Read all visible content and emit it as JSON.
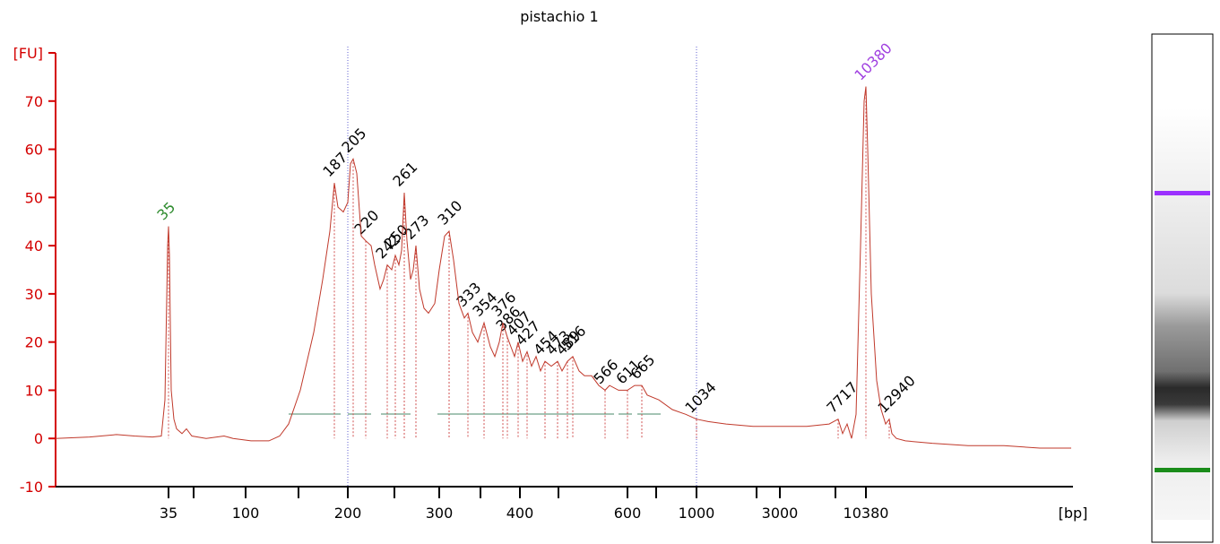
{
  "chart_data": {
    "type": "line",
    "title": "pistachio 1",
    "ylabel": "[FU]",
    "xlabel": "[bp]",
    "xlim": [
      0,
      113.5
    ],
    "ylim": [
      -10,
      80
    ],
    "yticks": [
      -10,
      0,
      10,
      20,
      30,
      40,
      50,
      60,
      70
    ],
    "xticks": [
      {
        "value": 12.6,
        "label": "35"
      },
      {
        "value": 21.2,
        "label": "100"
      },
      {
        "value": 32.6,
        "label": "200"
      },
      {
        "value": 42.8,
        "label": "300"
      },
      {
        "value": 51.8,
        "label": "400"
      },
      {
        "value": 63.8,
        "label": "600"
      },
      {
        "value": 71.5,
        "label": "1000"
      },
      {
        "value": 80.8,
        "label": "3000"
      },
      {
        "value": 90.4,
        "label": "10380"
      }
    ],
    "xminorticks": [
      15.4,
      27.1,
      37.8,
      47.4,
      56.1,
      67,
      78.2,
      87
    ],
    "marker_lines": [
      32.6,
      71.5
    ],
    "series": [
      {
        "color": "#c0392b",
        "x": [
          0,
          3.8,
          6.8,
          8.8,
          10.8,
          11.8,
          12.2,
          12.5,
          12.6,
          12.7,
          12.9,
          13.2,
          13.5,
          14.1,
          14.6,
          15.2,
          16.8,
          18.8,
          19.8,
          21.8,
          23.8,
          25,
          26,
          27.3,
          28.8,
          29.8,
          30.6,
          31.1,
          31.5,
          32.1,
          32.6,
          32.9,
          33.2,
          33.6,
          34.1,
          34.6,
          35.2,
          35.6,
          36.2,
          36.6,
          37,
          37.5,
          37.9,
          38.3,
          38.6,
          38.9,
          39.2,
          39.6,
          39.9,
          40.2,
          40.6,
          41.1,
          41.6,
          42.3,
          42.8,
          43.4,
          43.9,
          44.4,
          45,
          45.6,
          46,
          46.5,
          47.1,
          47.8,
          48.5,
          49,
          49.5,
          49.9,
          50.4,
          50.8,
          51.2,
          51.6,
          52.1,
          52.6,
          53.1,
          53.6,
          54.1,
          54.6,
          55.3,
          56,
          56.5,
          57.1,
          57.7,
          58.4,
          59,
          59.8,
          60.6,
          61.3,
          61.8,
          62.8,
          63.8,
          64.6,
          65.4,
          66,
          67.3,
          68.8,
          70.3,
          71.5,
          72.8,
          74.8,
          77.8,
          80.8,
          83.8,
          86.3,
          87.3,
          87.8,
          88.3,
          88.8,
          89.3,
          89.8,
          90.2,
          90.4,
          90.6,
          91,
          91.6,
          92.1,
          92.6,
          93,
          93.3,
          93.8,
          94.8,
          97.8,
          101.8,
          105.8,
          109.8,
          113.3
        ],
        "values": [
          0,
          0.3,
          0.8,
          0.5,
          0.3,
          0.5,
          8,
          40,
          44,
          38,
          10,
          4,
          2,
          1,
          2,
          0.5,
          0,
          0.5,
          0,
          -0.5,
          -0.5,
          0.5,
          3,
          10,
          22,
          33,
          43,
          53,
          48,
          47,
          49,
          57,
          58,
          55,
          42,
          41,
          40,
          36,
          31,
          33,
          36,
          35,
          38,
          36,
          39,
          51,
          41,
          33,
          35,
          40,
          31,
          27,
          26,
          28,
          35,
          42,
          43,
          37,
          28,
          25,
          26,
          22,
          20,
          24,
          19,
          17,
          20,
          24,
          21,
          19,
          17,
          20,
          16,
          18,
          15,
          17,
          14,
          16,
          15,
          16,
          14,
          16,
          17,
          14,
          13,
          13,
          11,
          10,
          11,
          10,
          10,
          11,
          11,
          9,
          8,
          6,
          5,
          4,
          3.5,
          3,
          2.5,
          2.5,
          2.5,
          3,
          4,
          1,
          3,
          0,
          5,
          40,
          70,
          73,
          60,
          30,
          12,
          6,
          3,
          4,
          1,
          0,
          -0.5,
          -1,
          -1.5,
          -1.5,
          -2,
          -2
        ]
      }
    ],
    "peaks": [
      {
        "label": "35",
        "x": 12.6,
        "y": 44,
        "color": "#2e8b2e"
      },
      {
        "label": "187",
        "x": 31.1,
        "y": 53,
        "color": "#000000"
      },
      {
        "label": "205",
        "x": 33.2,
        "y": 58,
        "color": "#000000"
      },
      {
        "label": "220",
        "x": 34.6,
        "y": 41,
        "color": "#000000"
      },
      {
        "label": "242",
        "x": 37,
        "y": 36,
        "color": "#000000"
      },
      {
        "label": "250",
        "x": 37.9,
        "y": 38,
        "color": "#000000"
      },
      {
        "label": "261",
        "x": 38.9,
        "y": 51,
        "color": "#000000"
      },
      {
        "label": "273",
        "x": 40.2,
        "y": 40,
        "color": "#000000"
      },
      {
        "label": "310",
        "x": 43.9,
        "y": 43,
        "color": "#000000"
      },
      {
        "label": "333",
        "x": 46,
        "y": 26,
        "color": "#000000"
      },
      {
        "label": "354",
        "x": 47.8,
        "y": 24,
        "color": "#000000"
      },
      {
        "label": "376",
        "x": 49.9,
        "y": 24,
        "color": "#000000"
      },
      {
        "label": "386",
        "x": 50.4,
        "y": 21,
        "color": "#000000"
      },
      {
        "label": "407",
        "x": 51.6,
        "y": 20,
        "color": "#000000"
      },
      {
        "label": "427",
        "x": 52.6,
        "y": 18,
        "color": "#000000"
      },
      {
        "label": "454",
        "x": 54.6,
        "y": 16,
        "color": "#000000"
      },
      {
        "label": "473",
        "x": 56,
        "y": 16,
        "color": "#000000"
      },
      {
        "label": "489",
        "x": 57.1,
        "y": 16,
        "color": "#000000"
      },
      {
        "label": "516",
        "x": 57.7,
        "y": 17,
        "color": "#000000"
      },
      {
        "label": "566",
        "x": 61.3,
        "y": 10,
        "color": "#000000"
      },
      {
        "label": "611",
        "x": 63.8,
        "y": 10,
        "color": "#000000"
      },
      {
        "label": "665",
        "x": 65.4,
        "y": 11,
        "color": "#000000"
      },
      {
        "label": "1034",
        "x": 71.5,
        "y": 4,
        "color": "#000000"
      },
      {
        "label": "7717",
        "x": 87.3,
        "y": 4,
        "color": "#000000"
      },
      {
        "label": "10380",
        "x": 90.4,
        "y": 73,
        "color": "#a040e0"
      },
      {
        "label": "12940",
        "x": 93,
        "y": 4,
        "color": "#000000"
      }
    ]
  }
}
